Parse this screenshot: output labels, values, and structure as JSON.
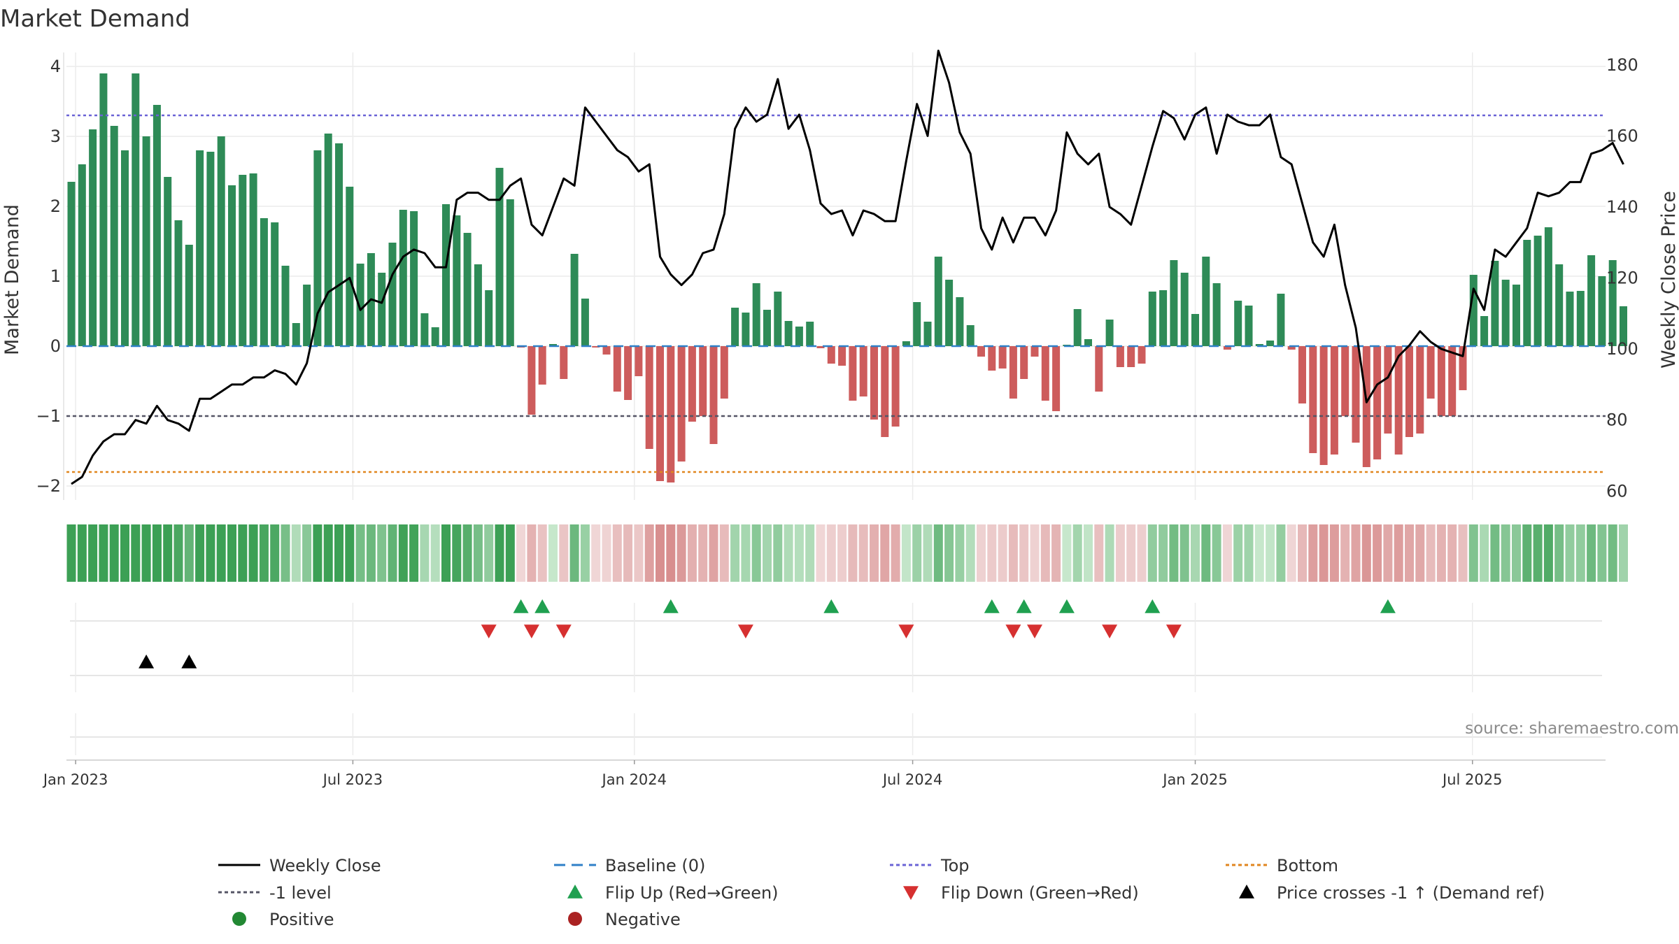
{
  "chart_data": {
    "type": "bar",
    "title": "Market Demand",
    "ylabel": "Market Demand",
    "y2label": "Weekly Close Price",
    "ylim": [
      -2.2,
      4.2
    ],
    "y2lim": [
      57.5,
      183.5
    ],
    "yticks": [
      -2,
      -1,
      0,
      1,
      2,
      3,
      4
    ],
    "ytick_labels": [
      "−2",
      "−1",
      "0",
      "1",
      "2",
      "3",
      "4"
    ],
    "y2ticks": [
      60,
      80,
      100,
      120,
      140,
      160,
      180
    ],
    "y2tick_labels": [
      "60",
      "80",
      "100",
      "120",
      "140",
      "160",
      "180"
    ],
    "x_start": "2022-12-29",
    "x_step_weeks": 1,
    "xtick_labels": [
      "Jan 2023",
      "Jul 2023",
      "Jan 2024",
      "Jul 2024",
      "Jan 2025",
      "Jul 2025"
    ],
    "xtick_weeks": [
      0.4,
      26.3,
      52.6,
      78.6,
      105,
      130.9
    ],
    "reference_lines": {
      "top": 3.3,
      "minus_one": -1.0,
      "bottom": -1.8,
      "baseline": 0
    },
    "series": [
      {
        "name": "Market Demand",
        "kind": "bar",
        "values": [
          2.35,
          2.6,
          3.1,
          3.9,
          3.15,
          2.8,
          3.9,
          3.0,
          3.45,
          2.42,
          1.8,
          1.45,
          2.8,
          2.78,
          3.0,
          2.3,
          2.45,
          2.47,
          1.83,
          1.77,
          1.15,
          0.33,
          0.88,
          2.8,
          3.04,
          2.9,
          2.28,
          1.18,
          1.33,
          1.05,
          1.48,
          1.95,
          1.93,
          0.47,
          0.27,
          2.03,
          1.87,
          1.62,
          1.17,
          0.8,
          2.55,
          2.1,
          -0.02,
          -0.98,
          -0.55,
          0.03,
          -0.47,
          1.32,
          0.68,
          -0.02,
          -0.12,
          -0.65,
          -0.77,
          -0.43,
          -1.47,
          -1.93,
          -1.95,
          -1.65,
          -1.08,
          -1.0,
          -1.4,
          -0.75,
          0.55,
          0.48,
          0.9,
          0.52,
          0.78,
          0.36,
          0.28,
          0.35,
          -0.03,
          -0.25,
          -0.28,
          -0.78,
          -0.72,
          -1.05,
          -1.3,
          -1.15,
          0.07,
          0.63,
          0.35,
          1.28,
          0.95,
          0.7,
          0.3,
          -0.15,
          -0.35,
          -0.32,
          -0.75,
          -0.47,
          -0.15,
          -0.78,
          -0.93,
          0.02,
          0.53,
          0.1,
          -0.65,
          0.38,
          -0.3,
          -0.3,
          -0.25,
          0.78,
          0.8,
          1.23,
          1.05,
          0.46,
          1.28,
          0.9,
          -0.05,
          0.65,
          0.58,
          0.03,
          0.08,
          0.75,
          -0.05,
          -0.82,
          -1.53,
          -1.7,
          -1.55,
          -1.0,
          -1.38,
          -1.73,
          -1.62,
          -1.25,
          -1.55,
          -1.3,
          -1.25,
          -0.75,
          -1.0,
          -1.0,
          -0.63,
          1.02,
          0.43,
          1.22,
          0.95,
          0.88,
          1.52,
          1.58,
          1.7,
          1.17,
          0.78,
          0.79,
          1.3,
          1.0,
          1.23,
          0.57
        ]
      },
      {
        "name": "Weekly Close",
        "kind": "line",
        "color": "#000000",
        "values": [
          62,
          64,
          70,
          74,
          76,
          76,
          80,
          79,
          84,
          80,
          79,
          77,
          86,
          86,
          88,
          90,
          90,
          92,
          92,
          94,
          93,
          90,
          96,
          110,
          116,
          118,
          120,
          111,
          114,
          113,
          121,
          126,
          128,
          127,
          123,
          123,
          142,
          144,
          144,
          142,
          142,
          146,
          148,
          135,
          132,
          140,
          148,
          146,
          168,
          164,
          160,
          156,
          154,
          150,
          152,
          126,
          121,
          118,
          121,
          127,
          128,
          138,
          162,
          168,
          164,
          166,
          176,
          162,
          166,
          156,
          141,
          138,
          139,
          132,
          139,
          138,
          136,
          136,
          153,
          169,
          160,
          184,
          175,
          161,
          155,
          134,
          128,
          137,
          130,
          137,
          137,
          132,
          139,
          161,
          155,
          152,
          155,
          140,
          138,
          135,
          146,
          157,
          167,
          165,
          159,
          166,
          168,
          155,
          166,
          164,
          163,
          163,
          166,
          154,
          152,
          141,
          130,
          126,
          135,
          118,
          106,
          85,
          90,
          92,
          98,
          101,
          105,
          102,
          100,
          99,
          98,
          117,
          111,
          128,
          126,
          130,
          134,
          144,
          143,
          144,
          147,
          147,
          155,
          156,
          158,
          152
        ]
      }
    ],
    "heat_strip_values_note": "strip colour intensity mirrors Market Demand sign and magnitude",
    "events": {
      "flip_up_weeks": [
        42,
        44,
        56,
        71,
        86,
        89,
        93,
        101,
        123
      ],
      "flip_down_weeks": [
        39,
        43,
        46,
        63,
        78,
        88,
        90,
        97,
        103
      ],
      "price_cross_weeks": [
        7,
        11
      ]
    },
    "legend": {
      "placement": "bottom",
      "entries": [
        {
          "label": "Weekly Close",
          "symbol": "line-solid",
          "color": "#000000"
        },
        {
          "label": "Baseline (0)",
          "symbol": "line-dashed",
          "color": "#2f80c8"
        },
        {
          "label": "Top",
          "symbol": "line-dotted",
          "color": "#6a63d6"
        },
        {
          "label": "Bottom",
          "symbol": "line-dotted",
          "color": "#e0861f"
        },
        {
          "label": "-1 level",
          "symbol": "line-dotted",
          "color": "#555566"
        },
        {
          "label": "Flip Up (Red→Green)",
          "symbol": "triangle-up",
          "color": "#20a050"
        },
        {
          "label": "Flip Down (Green→Red)",
          "symbol": "triangle-down",
          "color": "#d63030"
        },
        {
          "label": "Price crosses -1 ↑ (Demand ref)",
          "symbol": "triangle-up",
          "color": "#000000"
        },
        {
          "label": "Positive",
          "symbol": "circle",
          "color": "#228833"
        },
        {
          "label": "Negative",
          "symbol": "circle",
          "color": "#aa2222"
        }
      ]
    },
    "colors": {
      "positive_bar": "#2e8b57",
      "negative_bar": "#cd5c5c"
    },
    "source": "source: sharemaestro.com"
  }
}
